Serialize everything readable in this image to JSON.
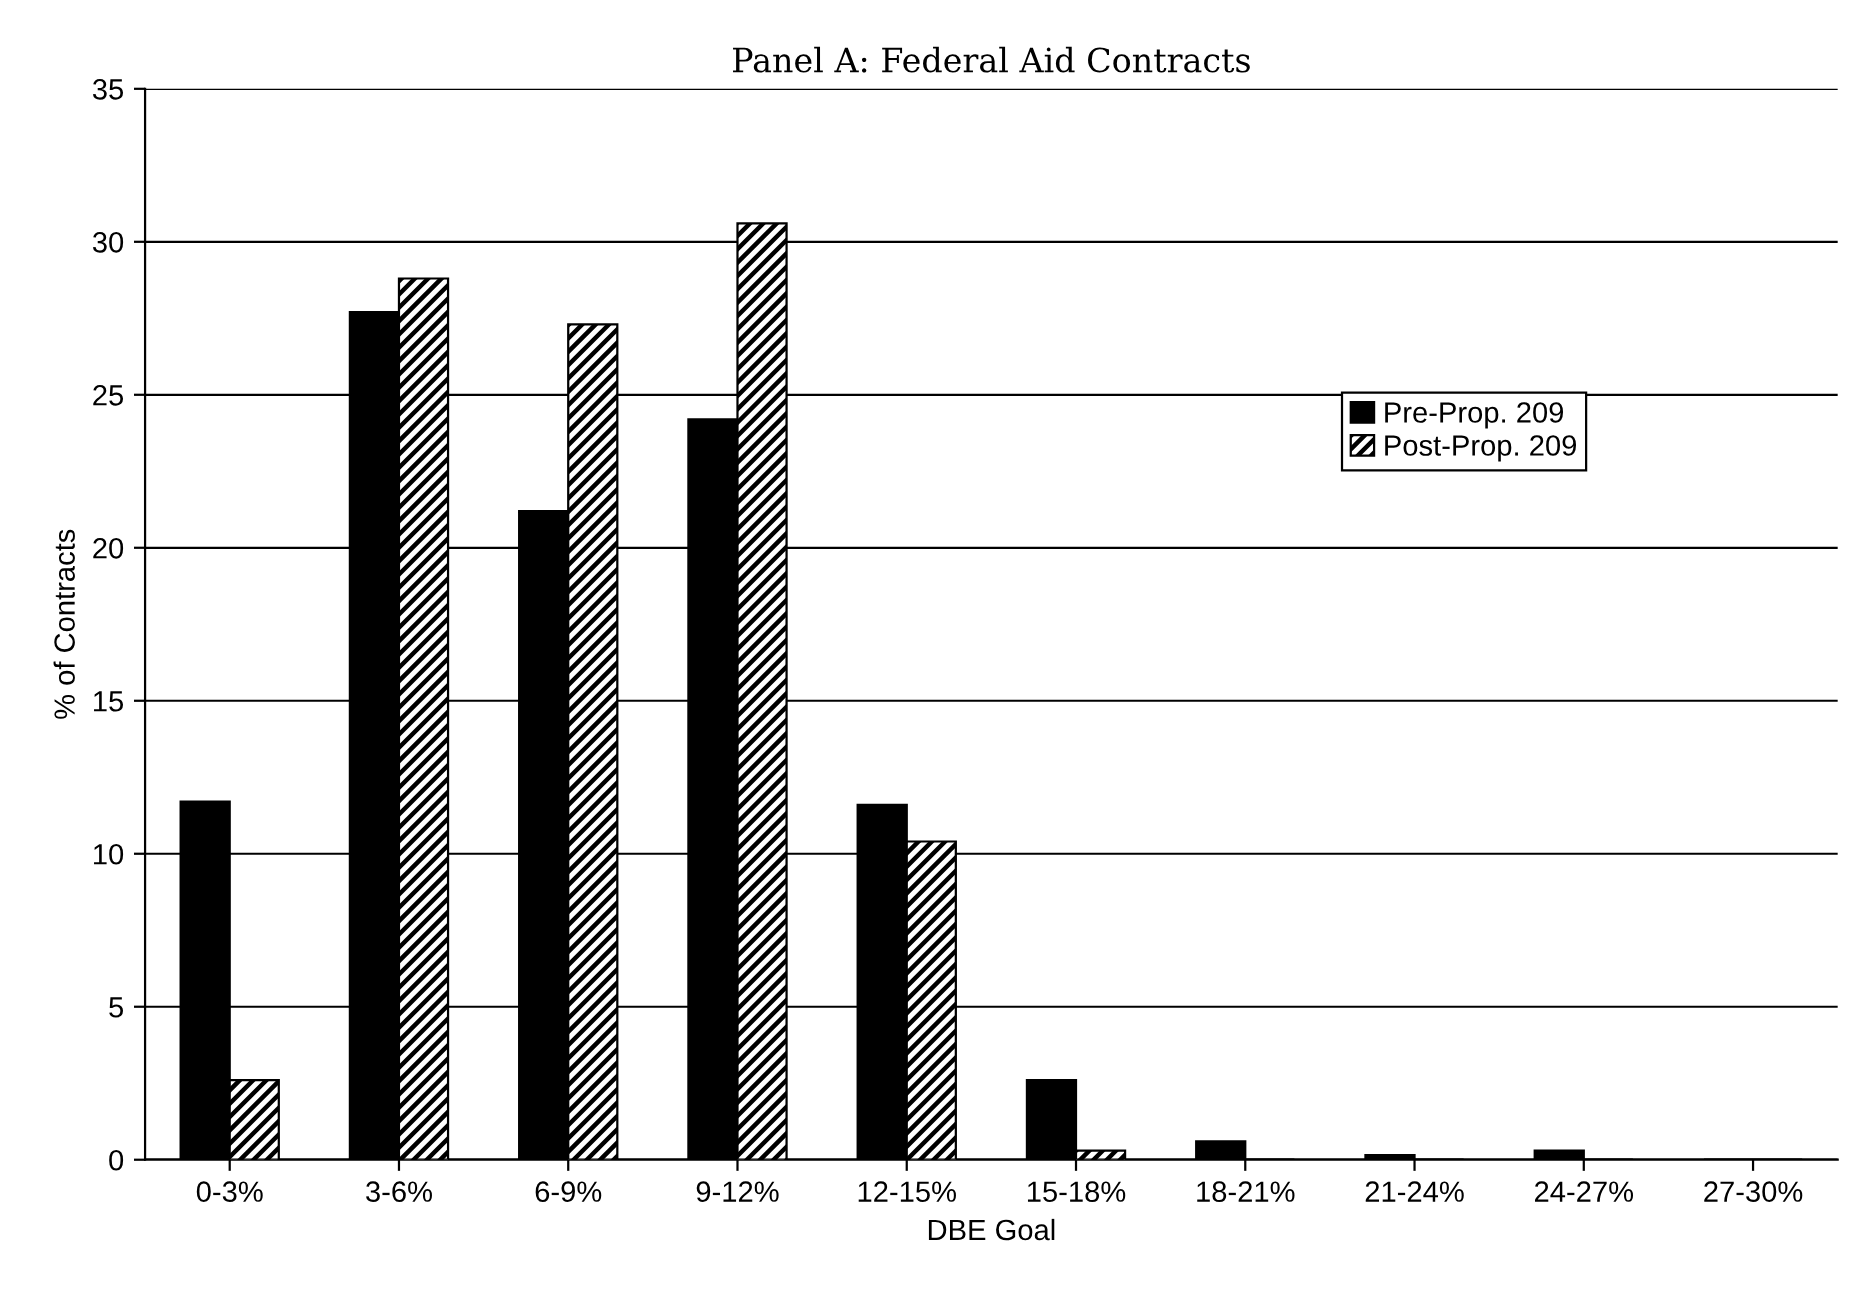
{
  "chart_data": {
    "type": "bar",
    "title": "Panel A: Federal Aid Contracts",
    "xlabel": "DBE Goal",
    "ylabel": "% of Contracts",
    "categories": [
      "0-3%",
      "3-6%",
      "6-9%",
      "9-12%",
      "12-15%",
      "15-18%",
      "18-21%",
      "21-24%",
      "24-27%",
      "27-30%"
    ],
    "series": [
      {
        "name": "Pre-Prop. 209",
        "color": "#000000",
        "values": [
          11.7,
          27.7,
          21.2,
          24.2,
          11.6,
          2.6,
          0.6,
          0.15,
          0.3,
          0
        ]
      },
      {
        "name": "Post-Prop. 209",
        "color": "#000000",
        "values": [
          2.6,
          28.8,
          27.3,
          30.6,
          10.4,
          0.3,
          0,
          0,
          0,
          0
        ]
      }
    ],
    "ylim": [
      0,
      35
    ],
    "yticks": [
      0,
      5,
      10,
      15,
      20,
      25,
      30,
      35
    ],
    "grid": "y",
    "legend": "right"
  }
}
